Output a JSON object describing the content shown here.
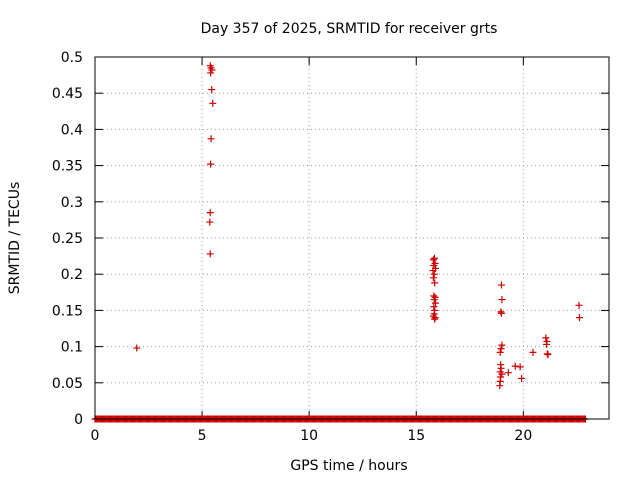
{
  "chart_data": {
    "type": "scatter",
    "title": "Day 357 of 2025, SRMTID for receiver grts",
    "xlabel": "GPS time / hours",
    "ylabel": "SRMTID / TECUs",
    "xlim": [
      0,
      24.0
    ],
    "ylim": [
      0,
      0.5
    ],
    "x_ticks": [
      0,
      5,
      10,
      15,
      20
    ],
    "y_ticks": [
      0,
      0.05,
      0.1,
      0.15,
      0.2,
      0.25,
      0.3,
      0.35,
      0.4,
      0.45,
      0.5
    ],
    "x_tick_labels": [
      "0",
      "5",
      "10",
      "15",
      "20"
    ],
    "y_tick_labels": [
      "0",
      "0.05",
      "0.1",
      "0.15",
      "0.2",
      "0.25",
      "0.3",
      "0.35",
      "0.4",
      "0.45",
      "0.5"
    ],
    "grid": true,
    "marker": "+",
    "color": "#cc0000",
    "baseline_series": {
      "y": 0,
      "x_start": 0,
      "x_end": 22.9,
      "x_step": 0.05
    },
    "points": [
      [
        1.95,
        0.098
      ],
      [
        5.38,
        0.488
      ],
      [
        5.42,
        0.485
      ],
      [
        5.46,
        0.482
      ],
      [
        5.4,
        0.478
      ],
      [
        5.45,
        0.455
      ],
      [
        5.5,
        0.436
      ],
      [
        5.42,
        0.387
      ],
      [
        5.4,
        0.352
      ],
      [
        5.38,
        0.285
      ],
      [
        5.36,
        0.272
      ],
      [
        5.38,
        0.228
      ],
      [
        15.8,
        0.22
      ],
      [
        15.85,
        0.222
      ],
      [
        15.88,
        0.215
      ],
      [
        15.82,
        0.212
      ],
      [
        15.78,
        0.205
      ],
      [
        15.9,
        0.208
      ],
      [
        15.84,
        0.2
      ],
      [
        15.8,
        0.195
      ],
      [
        15.86,
        0.188
      ],
      [
        15.82,
        0.17
      ],
      [
        15.88,
        0.168
      ],
      [
        15.84,
        0.165
      ],
      [
        15.9,
        0.16
      ],
      [
        15.82,
        0.155
      ],
      [
        15.86,
        0.15
      ],
      [
        15.84,
        0.145
      ],
      [
        15.8,
        0.142
      ],
      [
        15.88,
        0.14
      ],
      [
        15.86,
        0.138
      ],
      [
        18.98,
        0.185
      ],
      [
        19.0,
        0.165
      ],
      [
        18.95,
        0.148
      ],
      [
        18.98,
        0.146
      ],
      [
        19.0,
        0.102
      ],
      [
        18.96,
        0.097
      ],
      [
        18.92,
        0.092
      ],
      [
        18.94,
        0.075
      ],
      [
        18.96,
        0.07
      ],
      [
        18.92,
        0.065
      ],
      [
        19.0,
        0.062
      ],
      [
        18.94,
        0.058
      ],
      [
        18.92,
        0.052
      ],
      [
        18.9,
        0.046
      ],
      [
        19.3,
        0.064
      ],
      [
        19.62,
        0.073
      ],
      [
        19.85,
        0.072
      ],
      [
        19.92,
        0.056
      ],
      [
        20.45,
        0.092
      ],
      [
        21.05,
        0.112
      ],
      [
        21.1,
        0.107
      ],
      [
        21.08,
        0.103
      ],
      [
        21.12,
        0.09
      ],
      [
        21.15,
        0.089
      ],
      [
        22.6,
        0.157
      ],
      [
        22.62,
        0.14
      ]
    ]
  }
}
